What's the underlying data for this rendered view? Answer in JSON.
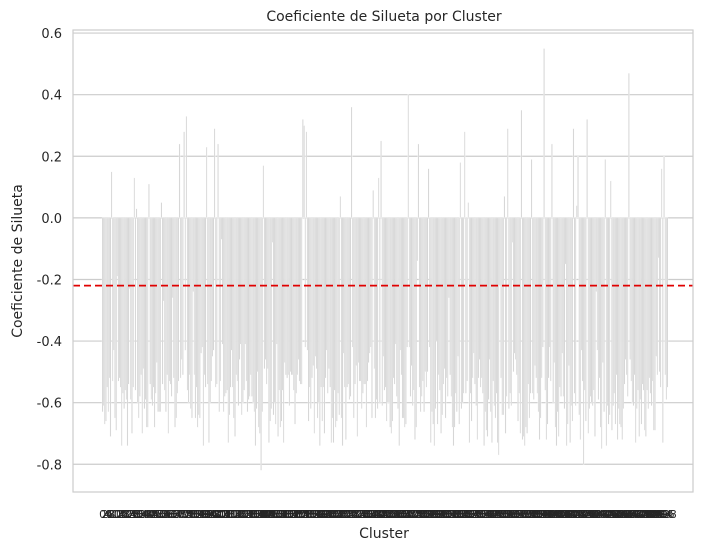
{
  "chart_data": {
    "type": "bar",
    "title": "Coeficiente de Silueta por Cluster",
    "xlabel": "Cluster",
    "ylabel": "Coeficiente de Silueta",
    "ylim": [
      -0.89,
      0.61
    ],
    "yticks": [
      "0.6",
      "0.4",
      "0.2",
      "0.0",
      "-0.2",
      "-0.4",
      "-0.6",
      "-0.8"
    ],
    "x_tick_labels": "dense overlapping cluster indices (illegible)",
    "grid": true,
    "bar_color": "#cccccc",
    "bar_edge_color": "#ffffff",
    "reference_line": {
      "y": -0.22,
      "color": "#e00000",
      "style": "dashed"
    },
    "bar_count": 500,
    "values_note": "approximate; per-bar values reconstructed from the visual envelope",
    "min_value": -0.82,
    "max_value": 0.55
  }
}
